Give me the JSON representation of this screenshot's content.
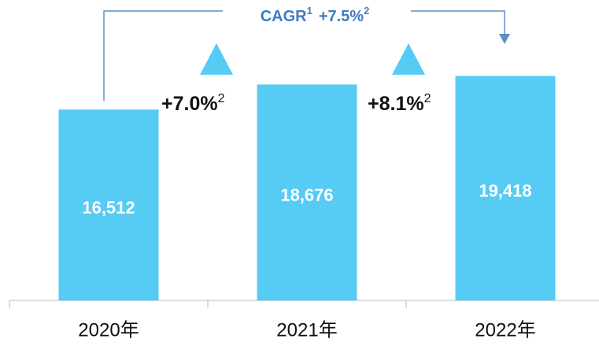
{
  "chart_data": {
    "type": "bar",
    "categories": [
      "2020年",
      "2021年",
      "2022年"
    ],
    "values": [
      16512,
      18676,
      19418
    ],
    "value_labels": [
      "16,512",
      "18,676",
      "19,418"
    ],
    "color": "#56cbf4",
    "growth": [
      {
        "label": "+7.0%",
        "note": "2"
      },
      {
        "label": "+8.1%",
        "note": "2"
      }
    ],
    "cagr": {
      "label": "CAGR",
      "note": "1",
      "value": "+7.5%",
      "value_note": "2"
    }
  }
}
